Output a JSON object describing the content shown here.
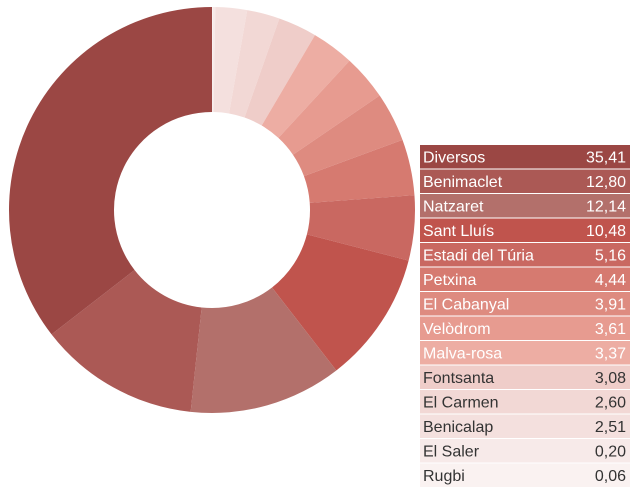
{
  "chart_data": {
    "type": "pie",
    "donut": true,
    "categories": [
      "Diversos",
      "Benimaclet",
      "Natzaret",
      "Sant Lluís",
      "Estadi del Túria",
      "Petxina",
      "El Cabanyal",
      "Velòdrom",
      "Malva-rosa",
      "Fontsanta",
      "El Carmen",
      "Benicalap",
      "El Saler",
      "Rugbi"
    ],
    "values": [
      35.41,
      12.8,
      12.14,
      10.48,
      5.16,
      4.44,
      3.91,
      3.61,
      3.37,
      3.08,
      2.6,
      2.51,
      0.2,
      0.06
    ],
    "value_labels": [
      "35,41",
      "12,80",
      "12,14",
      "10,48",
      "5,16",
      "4,44",
      "3,91",
      "3,61",
      "3,37",
      "3,08",
      "2,60",
      "2,51",
      "0,20",
      "0,06"
    ],
    "colors": [
      "#9b4744",
      "#ab5955",
      "#b3706b",
      "#c0544d",
      "#c96861",
      "#d67a70",
      "#de8b80",
      "#e79b90",
      "#edada3",
      "#efcdc9",
      "#f2d8d5",
      "#f4e0de",
      "#f7eae9",
      "#faf2f1"
    ]
  }
}
